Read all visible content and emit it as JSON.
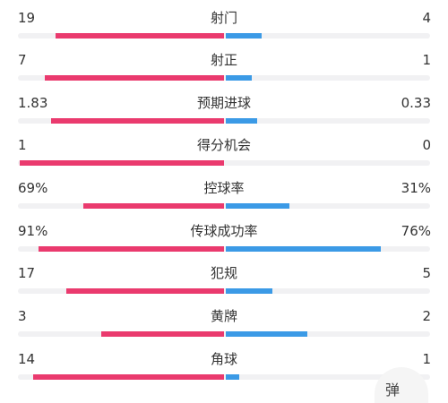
{
  "colors": {
    "home": "#ea3a6e",
    "away": "#3b9ae6",
    "track": "#f1f1f3"
  },
  "stats": [
    {
      "label": "射门",
      "home": "19",
      "away": "4",
      "home_share": 0.826,
      "away_share": 0.174
    },
    {
      "label": "射正",
      "home": "7",
      "away": "1",
      "home_share": 0.875,
      "away_share": 0.125
    },
    {
      "label": "预期进球",
      "home": "1.83",
      "away": "0.33",
      "home_share": 0.847,
      "away_share": 0.153
    },
    {
      "label": "得分机会",
      "home": "1",
      "away": "0",
      "home_share": 1.0,
      "away_share": 0.0
    },
    {
      "label": "控球率",
      "home": "69%",
      "away": "31%",
      "home_share": 0.69,
      "away_share": 0.31
    },
    {
      "label": "传球成功率",
      "home": "91%",
      "away": "76%",
      "home_share": 0.91,
      "away_share": 0.76
    },
    {
      "label": "犯规",
      "home": "17",
      "away": "5",
      "home_share": 0.773,
      "away_share": 0.227
    },
    {
      "label": "黄牌",
      "home": "3",
      "away": "2",
      "home_share": 0.6,
      "away_share": 0.4
    },
    {
      "label": "角球",
      "home": "14",
      "away": "1",
      "home_share": 0.933,
      "away_share": 0.067
    }
  ],
  "watermark": {
    "text": "弹"
  }
}
